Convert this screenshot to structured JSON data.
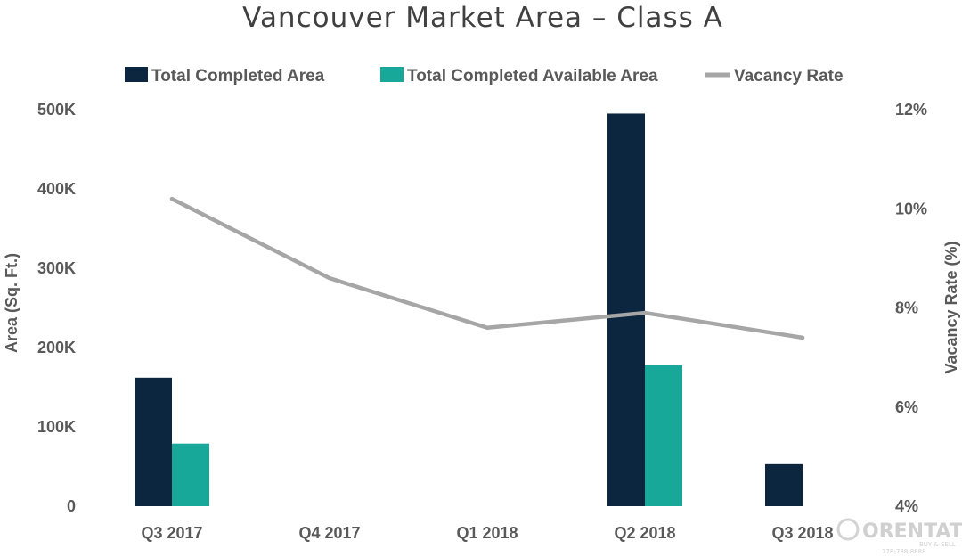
{
  "chart_data": {
    "type": "bar",
    "title": "Vancouver Market Area – Class A",
    "categories": [
      "Q3 2017",
      "Q4 2017",
      "Q1 2018",
      "Q2 2018",
      "Q3 2018"
    ],
    "series": [
      {
        "name": "Total Completed Area",
        "kind": "bar",
        "axis": "left",
        "color": "#0d2640",
        "values": [
          162000,
          0,
          0,
          495000,
          53000
        ]
      },
      {
        "name": "Total Completed Available Area",
        "kind": "bar",
        "axis": "left",
        "color": "#17a89a",
        "values": [
          79000,
          0,
          0,
          178000,
          0
        ]
      },
      {
        "name": "Vacancy Rate",
        "kind": "line",
        "axis": "right",
        "color": "#a6a6a6",
        "values": [
          10.2,
          8.6,
          7.6,
          7.9,
          7.4
        ]
      }
    ],
    "ylabel": "Area (Sq. Ft.)",
    "ylim": [
      0,
      500000
    ],
    "yticks": [
      "0",
      "100K",
      "200K",
      "300K",
      "400K",
      "500K"
    ],
    "y2label": "Vacancy Rate (%)",
    "y2lim": [
      4,
      12
    ],
    "y2ticks": [
      "4%",
      "6%",
      "8%",
      "10%",
      "12%"
    ],
    "legend_position": "top",
    "grid": false
  },
  "watermark": {
    "text": "ORENTATE",
    "subtext1": "BUY & SELL",
    "subtext2": "778-788-8888"
  }
}
